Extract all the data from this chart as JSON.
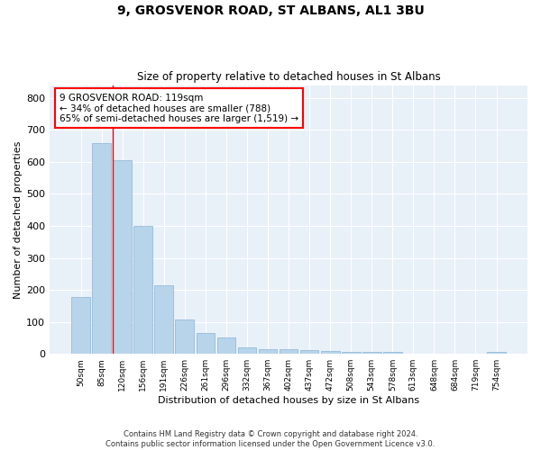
{
  "title": "9, GROSVENOR ROAD, ST ALBANS, AL1 3BU",
  "subtitle": "Size of property relative to detached houses in St Albans",
  "xlabel": "Distribution of detached houses by size in St Albans",
  "ylabel": "Number of detached properties",
  "bar_labels": [
    "50sqm",
    "85sqm",
    "120sqm",
    "156sqm",
    "191sqm",
    "226sqm",
    "261sqm",
    "296sqm",
    "332sqm",
    "367sqm",
    "402sqm",
    "437sqm",
    "472sqm",
    "508sqm",
    "543sqm",
    "578sqm",
    "613sqm",
    "648sqm",
    "684sqm",
    "719sqm",
    "754sqm"
  ],
  "bar_values": [
    178,
    660,
    605,
    400,
    215,
    107,
    64,
    50,
    20,
    16,
    15,
    12,
    8,
    5,
    5,
    5,
    0,
    0,
    0,
    0,
    5
  ],
  "bar_color": "#b8d4ea",
  "bar_edge_color": "#8ab4d4",
  "annotation_box_text": "9 GROSVENOR ROAD: 119sqm\n← 34% of detached houses are smaller (788)\n65% of semi-detached houses are larger (1,519) →",
  "property_line_x": 1.55,
  "ylim": [
    0,
    840
  ],
  "yticks": [
    0,
    100,
    200,
    300,
    400,
    500,
    600,
    700,
    800
  ],
  "plot_bg_color": "#e8f0f8",
  "footer_line1": "Contains HM Land Registry data © Crown copyright and database right 2024.",
  "footer_line2": "Contains public sector information licensed under the Open Government Licence v3.0."
}
